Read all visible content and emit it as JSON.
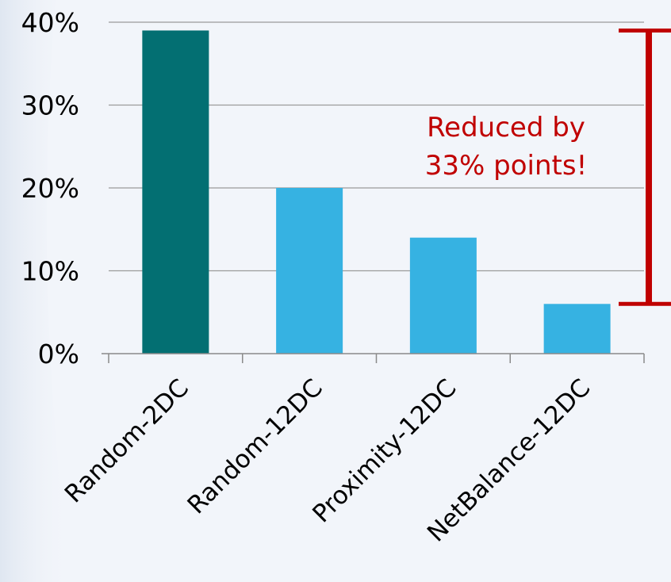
{
  "chart_data": {
    "type": "bar",
    "categories": [
      "Random-2DC",
      "Random-12DC",
      "Proximity-12DC",
      "NetBalance-12DC"
    ],
    "values": [
      39,
      20,
      14,
      6
    ],
    "value_unit": "%",
    "ylim": [
      0,
      40
    ],
    "yticks": [
      "0%",
      "10%",
      "20%",
      "30%",
      "40%"
    ],
    "ytick_values": [
      0,
      10,
      20,
      30,
      40
    ],
    "grid": true,
    "xlabel": "",
    "ylabel": "",
    "title": "",
    "colors": {
      "bars": [
        "#036f72",
        "#36b2e2",
        "#36b2e2",
        "#36b2e2"
      ],
      "grid": "#9a9a9a",
      "axis": "#8a8a8a",
      "text": "#000000",
      "annotation": "#c00000"
    },
    "annotation": {
      "lines": [
        "Reduced by",
        "33% points!"
      ],
      "range": [
        6,
        39
      ]
    }
  }
}
